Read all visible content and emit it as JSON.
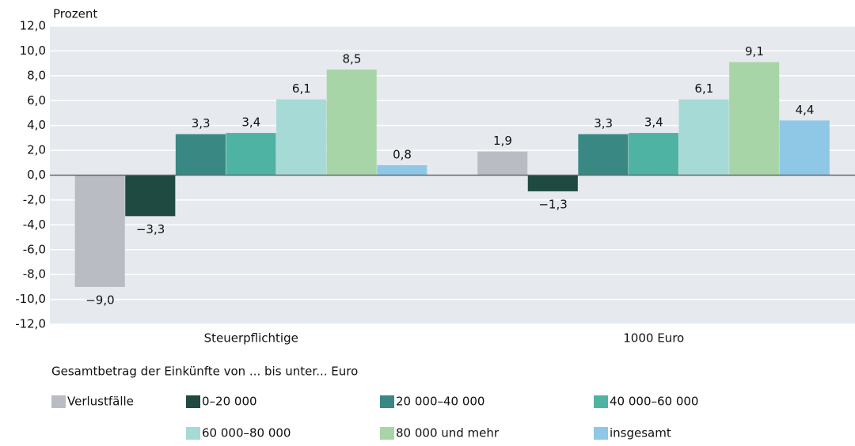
{
  "chart_data": {
    "type": "bar",
    "y_axis_label": "Prozent",
    "legend_title": "Gesamtbetrag der Einkünfte von ... bis unter... Euro",
    "categories": [
      "Steuerpflichtige",
      "1000 Euro"
    ],
    "series": [
      {
        "name": "Verlustfälle",
        "color": "#b9bdc3",
        "values": [
          -9.0,
          1.9
        ],
        "value_labels": [
          "−9,0",
          "1,9"
        ]
      },
      {
        "name": "0–20 000",
        "color": "#1f4a42",
        "values": [
          -3.3,
          -1.3
        ],
        "value_labels": [
          "−3,3",
          "−1,3"
        ]
      },
      {
        "name": "20 000–40 000",
        "color": "#3a8883",
        "values": [
          3.3,
          3.3
        ],
        "value_labels": [
          "3,3",
          "3,3"
        ]
      },
      {
        "name": "40 000–60 000",
        "color": "#4fb3a3",
        "values": [
          3.4,
          3.4
        ],
        "value_labels": [
          "3,4",
          "3,4"
        ]
      },
      {
        "name": "60 000–80 000",
        "color": "#a6dad6",
        "values": [
          6.1,
          6.1
        ],
        "value_labels": [
          "6,1",
          "6,1"
        ]
      },
      {
        "name": "80 000 und mehr",
        "color": "#a8d5a8",
        "values": [
          8.5,
          9.1
        ],
        "value_labels": [
          "8,5",
          "9,1"
        ]
      },
      {
        "name": "insgesamt",
        "color": "#8ec8e6",
        "values": [
          0.8,
          4.4
        ],
        "value_labels": [
          "0,8",
          "4,4"
        ]
      }
    ],
    "ylim": [
      -12,
      12
    ],
    "yticks": [
      {
        "value": -12,
        "label": "-12,0"
      },
      {
        "value": -10,
        "label": "-10,0"
      },
      {
        "value": -8,
        "label": "-8,0"
      },
      {
        "value": -6,
        "label": "-6,0"
      },
      {
        "value": -4,
        "label": "-4,0"
      },
      {
        "value": -2,
        "label": "-2,0"
      },
      {
        "value": 0,
        "label": "0,0"
      },
      {
        "value": 2,
        "label": "2,0"
      },
      {
        "value": 4,
        "label": "4,0"
      },
      {
        "value": 6,
        "label": "6,0"
      },
      {
        "value": 8,
        "label": "8,0"
      },
      {
        "value": 10,
        "label": "10,0"
      },
      {
        "value": 12,
        "label": "12,0"
      }
    ],
    "grid": true
  }
}
